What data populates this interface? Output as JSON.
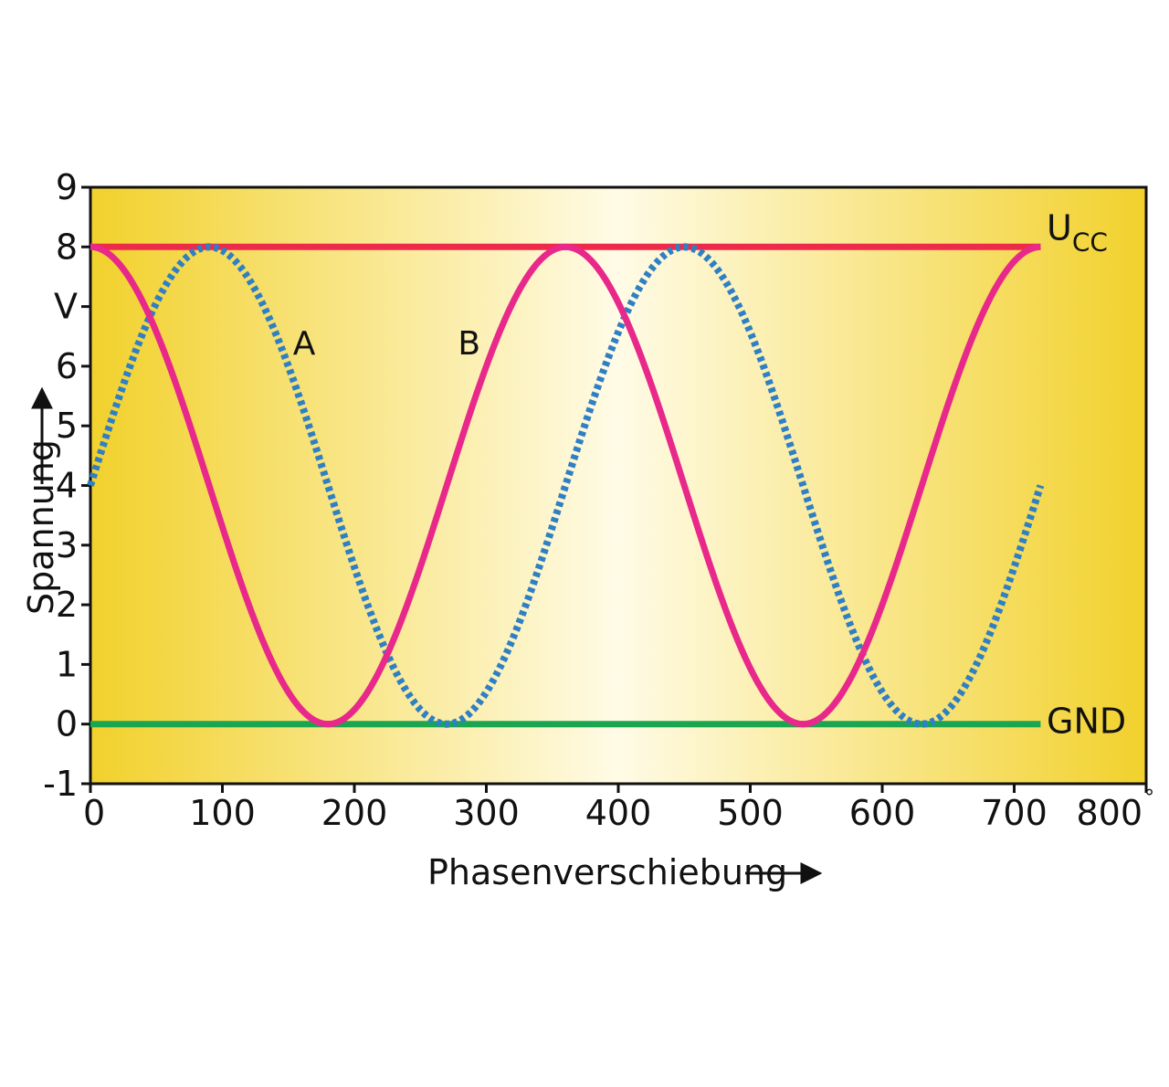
{
  "chart_data": {
    "type": "line",
    "xlabel": "Phasenverschiebung",
    "ylabel": "Spannung",
    "x_unit": "°",
    "y_unit_tick": "V",
    "xlim": [
      0,
      800
    ],
    "ylim": [
      -1,
      9
    ],
    "x_ticks": [
      0,
      100,
      200,
      300,
      400,
      500,
      600,
      700,
      800
    ],
    "y_ticks": [
      "-1",
      "0",
      "1",
      "2",
      "3",
      "4",
      "5",
      "6",
      "V",
      "8",
      "9"
    ],
    "reference_lines": [
      {
        "name": "UCC",
        "label_main": "U",
        "label_sub": "CC",
        "y": 8,
        "x_range": [
          0,
          720
        ],
        "color": "#ee2a4a"
      },
      {
        "name": "GND",
        "label_main": "GND",
        "label_sub": "",
        "y": 0,
        "x_range": [
          0,
          720
        ],
        "color": "#1aa650"
      }
    ],
    "series": [
      {
        "name": "A",
        "style": "dotted",
        "color": "#2f7fc4",
        "x_range": [
          0,
          720
        ],
        "description_values": {
          "offset": 4,
          "amplitude": 4,
          "phase_deg": 0,
          "kind": "sine"
        }
      },
      {
        "name": "B",
        "style": "solid",
        "color": "#e8288a",
        "x_range": [
          0,
          720
        ],
        "description_values": {
          "offset": 4,
          "amplitude": 4,
          "phase_deg": 0,
          "kind": "cosine"
        }
      }
    ],
    "annotations": [
      {
        "text": "A",
        "x": 162,
        "y": 6.4
      },
      {
        "text": "B",
        "x": 287,
        "y": 6.4
      }
    ],
    "grid": false,
    "background": {
      "colors": [
        "#f2d12c",
        "#fffbe6",
        "#f2d12c"
      ]
    }
  }
}
